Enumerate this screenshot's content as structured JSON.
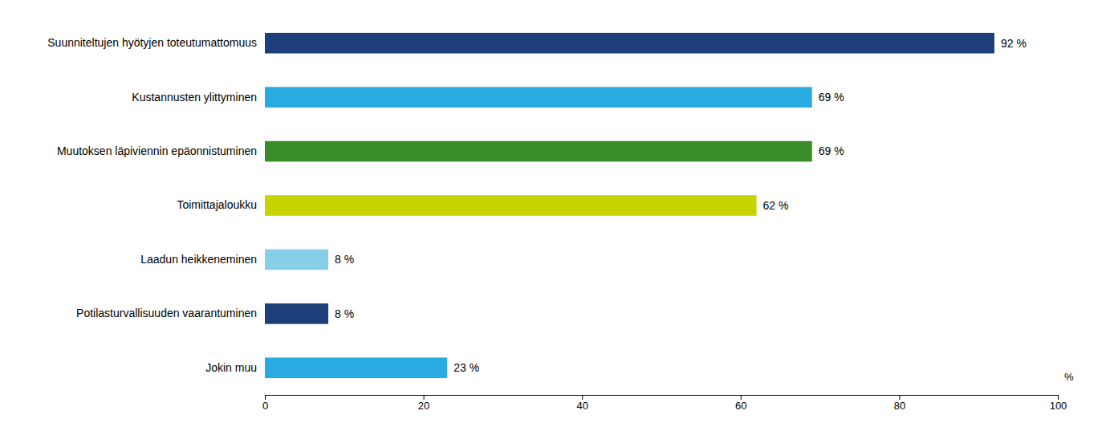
{
  "chart_data": {
    "type": "bar",
    "orientation": "horizontal",
    "categories": [
      "Jokin muu",
      "Potilasturvallisuuden vaarantuminen",
      "Laadun heikkeneminen",
      "Toimittajaloukku",
      "Muutoksen läpiviennin epäonnistuminen",
      "Kustannusten ylittyminen",
      "Suunniteltujen hyötyjen toteutumattomuus"
    ],
    "values": [
      23,
      8,
      8,
      62,
      69,
      69,
      92
    ],
    "value_labels": [
      "23 %",
      "8 %",
      "8 %",
      "62 %",
      "69 %",
      "69 %",
      "92 %"
    ],
    "colors": [
      "#29ABE2",
      "#1C3F7A",
      "#87CEEB",
      "#C8D400",
      "#3A8C2A",
      "#29ABE2",
      "#1C3F7A"
    ],
    "xlim": [
      0,
      100
    ],
    "xticks": [
      0,
      20,
      40,
      60,
      80,
      100
    ],
    "xlabel": "%",
    "data_labels": true,
    "grid": false
  }
}
